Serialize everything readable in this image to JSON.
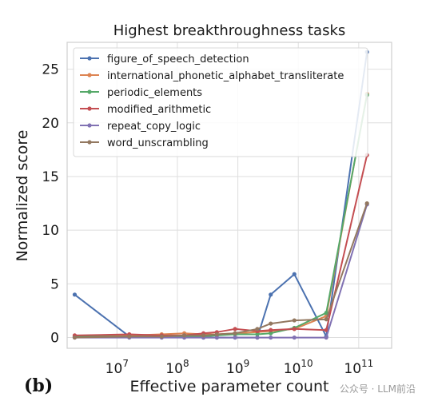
{
  "panel_label": "(b)",
  "watermark": "公众号 · LLM前沿",
  "chart_data": {
    "type": "line",
    "title": "Highest breakthroughness tasks",
    "xlabel": "Effective parameter count",
    "ylabel": "Normalized score",
    "xscale": "log",
    "xlim": [
      1500000,
      350000000000
    ],
    "ylim": [
      -1,
      27.5
    ],
    "yticks": [
      0,
      5,
      10,
      15,
      20,
      25
    ],
    "ytick_labels": [
      "0",
      "5",
      "10",
      "15",
      "20",
      "25"
    ],
    "xticks": [
      10000000,
      100000000,
      1000000000,
      10000000000,
      100000000000
    ],
    "xtick_labels": [
      {
        "base": "10",
        "exp": "7"
      },
      {
        "base": "10",
        "exp": "8"
      },
      {
        "base": "10",
        "exp": "9"
      },
      {
        "base": "10",
        "exp": "10"
      },
      {
        "base": "10",
        "exp": "11"
      }
    ],
    "grid": true,
    "legend_position": "upper-left",
    "series": [
      {
        "name": "figure_of_speech_detection",
        "color": "#4c72b0",
        "x": [
          2000000,
          16000000,
          55000000,
          130000000,
          270000000,
          450000000,
          900000000,
          2100000000,
          3500000000,
          8600000000,
          29000000000,
          137000000000
        ],
        "y": [
          4.0,
          0.1,
          0.1,
          0.1,
          0.0,
          0.0,
          0.0,
          0.0,
          4.0,
          5.9,
          0.1,
          26.6
        ]
      },
      {
        "name": "international_phonetic_alphabet_transliterate",
        "color": "#dd8452",
        "x": [
          2000000,
          16000000,
          55000000,
          130000000,
          270000000,
          450000000,
          900000000,
          2100000000,
          3500000000,
          8600000000,
          29000000000,
          137000000000
        ],
        "y": [
          0.1,
          0.2,
          0.3,
          0.4,
          0.3,
          0.3,
          0.4,
          0.5,
          0.6,
          0.8,
          2.0,
          22.7
        ]
      },
      {
        "name": "periodic_elements",
        "color": "#55a868",
        "x": [
          2000000,
          16000000,
          55000000,
          130000000,
          270000000,
          450000000,
          900000000,
          2100000000,
          3500000000,
          8600000000,
          29000000000,
          137000000000
        ],
        "y": [
          0.1,
          0.1,
          0.1,
          0.1,
          0.1,
          0.2,
          0.3,
          0.3,
          0.4,
          0.9,
          2.3,
          22.6
        ]
      },
      {
        "name": "modified_arithmetic",
        "color": "#c44e52",
        "x": [
          2000000,
          16000000,
          55000000,
          130000000,
          270000000,
          450000000,
          900000000,
          2100000000,
          3500000000,
          8600000000,
          29000000000,
          137000000000
        ],
        "y": [
          0.2,
          0.3,
          0.2,
          0.2,
          0.4,
          0.5,
          0.8,
          0.6,
          0.7,
          0.8,
          0.7,
          17.0
        ]
      },
      {
        "name": "repeat_copy_logic",
        "color": "#8172b3",
        "x": [
          2000000,
          16000000,
          55000000,
          130000000,
          270000000,
          450000000,
          900000000,
          2100000000,
          3500000000,
          8600000000,
          29000000000,
          137000000000
        ],
        "y": [
          0.0,
          0.0,
          0.0,
          0.0,
          0.0,
          0.0,
          0.0,
          0.0,
          0.0,
          0.0,
          0.0,
          12.4
        ]
      },
      {
        "name": "word_unscrambling",
        "color": "#937860",
        "x": [
          2000000,
          16000000,
          55000000,
          130000000,
          270000000,
          450000000,
          900000000,
          2100000000,
          3500000000,
          8600000000,
          29000000000,
          137000000000
        ],
        "y": [
          0.0,
          0.1,
          0.1,
          0.2,
          0.2,
          0.3,
          0.4,
          0.8,
          1.3,
          1.6,
          1.7,
          12.5
        ]
      }
    ]
  }
}
